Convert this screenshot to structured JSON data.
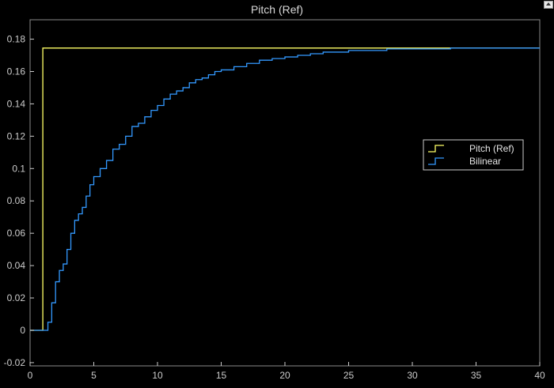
{
  "chart_data": {
    "type": "line",
    "title": "Pitch (Ref)",
    "xlabel": "",
    "ylabel": "",
    "xlim": [
      0,
      40
    ],
    "ylim": [
      -0.022,
      0.192
    ],
    "xticks": [
      "0",
      "5",
      "10",
      "15",
      "20",
      "25",
      "30",
      "35",
      "40"
    ],
    "yticks": [
      "-0.02",
      "0",
      "0.02",
      "0.04",
      "0.06",
      "0.08",
      "0.1",
      "0.12",
      "0.14",
      "0.16",
      "0.18"
    ],
    "grid": true,
    "legend_position": "right",
    "series": [
      {
        "name": "Pitch (Ref)",
        "color": "#ffff66",
        "step": true,
        "x": [
          0,
          1,
          1,
          40
        ],
        "y": [
          0,
          0,
          0.1745,
          0.1745
        ]
      },
      {
        "name": "Bilinear",
        "color": "#3399ff",
        "step": true,
        "x": [
          0,
          1.4,
          1.7,
          2.0,
          2.3,
          2.6,
          2.9,
          3.2,
          3.5,
          3.8,
          4.1,
          4.4,
          4.7,
          5.0,
          5.5,
          6.0,
          6.5,
          7.0,
          7.5,
          8.0,
          8.5,
          9.0,
          9.5,
          10.0,
          10.5,
          11.0,
          11.5,
          12.0,
          12.5,
          13.0,
          13.5,
          14.0,
          14.5,
          15.0,
          16.0,
          17.0,
          18.0,
          19.0,
          20.0,
          21.0,
          22.0,
          23.0,
          24.0,
          25.0,
          26.0,
          27.0,
          28.0,
          29.0,
          30.0,
          31.0,
          32.0,
          33.0,
          34.0,
          35.0,
          36.0,
          37.0,
          38.0,
          39.0,
          40.0
        ],
        "y": [
          0,
          0.005,
          0.017,
          0.03,
          0.037,
          0.041,
          0.05,
          0.06,
          0.068,
          0.072,
          0.076,
          0.083,
          0.09,
          0.095,
          0.1,
          0.105,
          0.112,
          0.115,
          0.12,
          0.126,
          0.128,
          0.132,
          0.136,
          0.139,
          0.143,
          0.146,
          0.148,
          0.15,
          0.153,
          0.155,
          0.156,
          0.158,
          0.16,
          0.161,
          0.163,
          0.165,
          0.167,
          0.168,
          0.169,
          0.17,
          0.171,
          0.172,
          0.172,
          0.173,
          0.173,
          0.173,
          0.174,
          0.174,
          0.174,
          0.174,
          0.174,
          0.1745,
          0.1745,
          0.1745,
          0.1745,
          0.1745,
          0.1745,
          0.1745,
          0.1745
        ]
      }
    ]
  },
  "colors": {
    "background": "#000000",
    "axes": "#000000",
    "grid": "#4d4d4d",
    "tick_text": "#cccccc",
    "legend_bg": "#000000",
    "legend_border": "#cccccc"
  }
}
